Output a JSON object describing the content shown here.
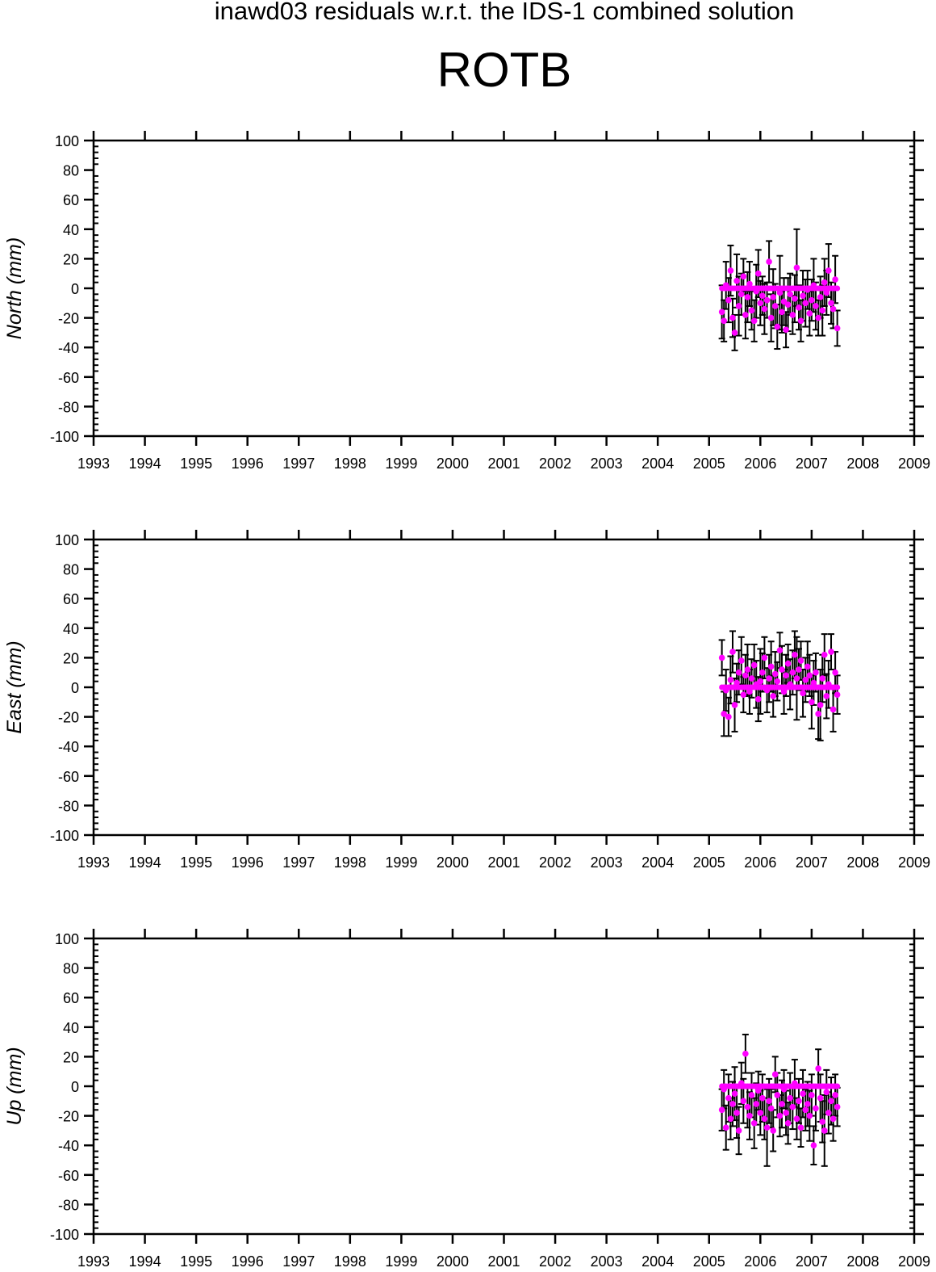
{
  "title": "inawd03 residuals w.r.t. the IDS-1 combined solution",
  "station": "ROTB",
  "colors": {
    "points": "#ff00ff",
    "error_bars": "#000000",
    "axes": "#000000"
  },
  "chart_data": [
    {
      "type": "scatter",
      "name": "north",
      "ylabel": "North (mm)",
      "xlim": [
        1993,
        2009
      ],
      "ylim": [
        -100,
        100
      ],
      "xticks": [
        1993,
        1994,
        1995,
        1996,
        1997,
        1998,
        1999,
        2000,
        2001,
        2002,
        2003,
        2004,
        2005,
        2006,
        2007,
        2008,
        2009
      ],
      "yticks": [
        100,
        80,
        60,
        40,
        20,
        0,
        -20,
        -40,
        -60,
        -80,
        -100
      ],
      "reference_value": 0,
      "x": [
        2005.25,
        2005.29,
        2005.33,
        2005.38,
        2005.42,
        2005.46,
        2005.5,
        2005.54,
        2005.58,
        2005.63,
        2005.67,
        2005.71,
        2005.75,
        2005.79,
        2005.83,
        2005.88,
        2005.92,
        2005.96,
        2006.0,
        2006.04,
        2006.08,
        2006.13,
        2006.17,
        2006.21,
        2006.25,
        2006.29,
        2006.33,
        2006.38,
        2006.42,
        2006.46,
        2006.5,
        2006.54,
        2006.58,
        2006.63,
        2006.67,
        2006.71,
        2006.75,
        2006.79,
        2006.83,
        2006.88,
        2006.92,
        2006.96,
        2007.0,
        2007.04,
        2007.08,
        2007.13,
        2007.17,
        2007.21,
        2007.25,
        2007.29,
        2007.33,
        2007.38,
        2007.42,
        2007.46,
        2007.5
      ],
      "y": [
        -16,
        -22,
        2,
        -8,
        12,
        -20,
        -30,
        5,
        -12,
        -4,
        8,
        -18,
        -6,
        3,
        -15,
        -22,
        -2,
        10,
        -10,
        -5,
        -14,
        -8,
        18,
        -20,
        -6,
        -12,
        -26,
        -3,
        -16,
        -9,
        -28,
        -11,
        -4,
        -18,
        -7,
        14,
        -13,
        -22,
        -5,
        -10,
        -1,
        -17,
        -8,
        2,
        -12,
        -20,
        -6,
        -15,
        4,
        -3,
        12,
        -10,
        -14,
        6,
        -27
      ],
      "err": [
        18,
        14,
        16,
        15,
        17,
        13,
        12,
        18,
        20,
        14,
        12,
        16,
        17,
        15,
        13,
        14,
        18,
        16,
        15,
        13,
        17,
        12,
        14,
        16,
        19,
        15,
        15,
        25,
        14,
        16,
        12,
        18,
        14,
        13,
        16,
        26,
        15,
        14,
        17,
        16,
        13,
        15,
        14,
        18,
        16,
        12,
        14,
        17,
        16,
        15,
        18,
        14,
        13,
        16,
        12
      ]
    },
    {
      "type": "scatter",
      "name": "east",
      "ylabel": "East (mm)",
      "xlim": [
        1993,
        2009
      ],
      "ylim": [
        -100,
        100
      ],
      "xticks": [
        1993,
        1994,
        1995,
        1996,
        1997,
        1998,
        1999,
        2000,
        2001,
        2002,
        2003,
        2004,
        2005,
        2006,
        2007,
        2008,
        2009
      ],
      "yticks": [
        100,
        80,
        60,
        40,
        20,
        0,
        -20,
        -40,
        -60,
        -80,
        -100
      ],
      "reference_value": 0,
      "x": [
        2005.25,
        2005.29,
        2005.33,
        2005.38,
        2005.42,
        2005.46,
        2005.5,
        2005.54,
        2005.58,
        2005.63,
        2005.67,
        2005.71,
        2005.75,
        2005.79,
        2005.83,
        2005.88,
        2005.92,
        2005.96,
        2006.0,
        2006.04,
        2006.08,
        2006.13,
        2006.17,
        2006.21,
        2006.25,
        2006.29,
        2006.33,
        2006.38,
        2006.42,
        2006.46,
        2006.5,
        2006.54,
        2006.58,
        2006.63,
        2006.67,
        2006.71,
        2006.75,
        2006.79,
        2006.83,
        2006.88,
        2006.92,
        2006.96,
        2007.0,
        2007.04,
        2007.08,
        2007.13,
        2007.17,
        2007.21,
        2007.25,
        2007.29,
        2007.33,
        2007.38,
        2007.42,
        2007.46,
        2007.5
      ],
      "y": [
        20,
        -18,
        -2,
        -20,
        5,
        24,
        -12,
        3,
        10,
        18,
        -5,
        8,
        12,
        -3,
        6,
        15,
        2,
        -8,
        4,
        10,
        20,
        -2,
        6,
        14,
        -6,
        9,
        4,
        25,
        12,
        -3,
        8,
        16,
        2,
        10,
        22,
        6,
        12,
        18,
        -4,
        5,
        14,
        8,
        -10,
        3,
        10,
        -18,
        -12,
        6,
        22,
        -6,
        2,
        24,
        -15,
        10,
        -5
      ],
      "err": [
        12,
        15,
        14,
        13,
        16,
        14,
        18,
        13,
        15,
        16,
        12,
        14,
        17,
        15,
        13,
        14,
        16,
        15,
        22,
        13,
        14,
        15,
        16,
        17,
        14,
        15,
        13,
        12,
        16,
        15,
        14,
        13,
        17,
        15,
        16,
        28,
        14,
        13,
        16,
        15,
        17,
        14,
        18,
        15,
        13,
        17,
        24,
        16,
        14,
        15,
        16,
        12,
        15,
        14,
        13
      ]
    },
    {
      "type": "scatter",
      "name": "up",
      "ylabel": "Up (mm)",
      "xlim": [
        1993,
        2009
      ],
      "ylim": [
        -100,
        100
      ],
      "xticks": [
        1993,
        1994,
        1995,
        1996,
        1997,
        1998,
        1999,
        2000,
        2001,
        2002,
        2003,
        2004,
        2005,
        2006,
        2007,
        2008,
        2009
      ],
      "yticks": [
        100,
        80,
        60,
        40,
        20,
        0,
        -20,
        -40,
        -60,
        -80,
        -100
      ],
      "reference_value": 0,
      "x": [
        2005.25,
        2005.29,
        2005.33,
        2005.38,
        2005.42,
        2005.46,
        2005.5,
        2005.54,
        2005.58,
        2005.63,
        2005.67,
        2005.71,
        2005.75,
        2005.79,
        2005.83,
        2005.88,
        2005.92,
        2005.96,
        2006.0,
        2006.04,
        2006.08,
        2006.13,
        2006.17,
        2006.21,
        2006.25,
        2006.29,
        2006.33,
        2006.38,
        2006.42,
        2006.46,
        2006.5,
        2006.54,
        2006.58,
        2006.63,
        2006.67,
        2006.71,
        2006.75,
        2006.79,
        2006.83,
        2006.88,
        2006.92,
        2006.96,
        2007.0,
        2007.04,
        2007.08,
        2007.13,
        2007.17,
        2007.21,
        2007.25,
        2007.29,
        2007.33,
        2007.38,
        2007.42,
        2007.46,
        2007.5
      ],
      "y": [
        -16,
        -2,
        -28,
        -8,
        -22,
        -12,
        -5,
        -18,
        -30,
        2,
        -10,
        22,
        -14,
        -20,
        -6,
        -25,
        -12,
        -3,
        -18,
        -8,
        -22,
        -28,
        -10,
        -15,
        -30,
        8,
        -6,
        -20,
        -12,
        -2,
        -18,
        -25,
        -8,
        -14,
        2,
        -22,
        -10,
        -28,
        -5,
        -16,
        -12,
        -20,
        -6,
        -40,
        -15,
        12,
        -8,
        -24,
        -30,
        -4,
        -18,
        -10,
        -22,
        -6,
        -14
      ],
      "err": [
        14,
        13,
        15,
        16,
        14,
        15,
        18,
        17,
        16,
        14,
        15,
        13,
        14,
        16,
        15,
        17,
        14,
        13,
        15,
        16,
        14,
        26,
        15,
        13,
        14,
        12,
        15,
        14,
        16,
        13,
        15,
        14,
        17,
        15,
        16,
        14,
        15,
        13,
        16,
        14,
        15,
        17,
        14,
        13,
        15,
        13,
        16,
        14,
        24,
        15,
        14,
        16,
        15,
        14,
        13
      ]
    }
  ]
}
